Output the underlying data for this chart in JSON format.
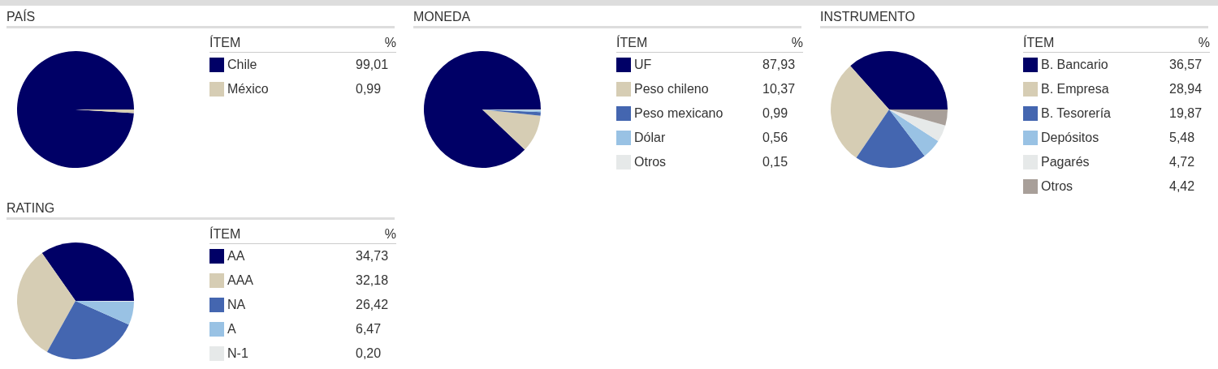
{
  "chart_data": [
    {
      "type": "pie",
      "title": "PAÍS",
      "legend_title": "ÍTEM",
      "annotations": [
        "%"
      ],
      "legend": "right",
      "categories": [
        "Chile",
        "México"
      ],
      "values": [
        99.01,
        0.99
      ],
      "value_labels": [
        "99,01",
        "0,99"
      ],
      "colors": [
        "#000066",
        "#d6cdb4"
      ]
    },
    {
      "type": "pie",
      "title": "MONEDA",
      "legend_title": "ÍTEM",
      "annotations": [
        "%"
      ],
      "legend": "right",
      "categories": [
        "UF",
        "Peso chileno",
        "Peso mexicano",
        "Dólar",
        "Otros"
      ],
      "values": [
        87.93,
        10.37,
        0.99,
        0.56,
        0.15
      ],
      "value_labels": [
        "87,93",
        "10,37",
        "0,99",
        "0,56",
        "0,15"
      ],
      "colors": [
        "#000066",
        "#d6cdb4",
        "#4466b0",
        "#99c2e4",
        "#e6e9e9"
      ]
    },
    {
      "type": "pie",
      "title": "INSTRUMENTO",
      "legend_title": "ÍTEM",
      "annotations": [
        "%"
      ],
      "legend": "right",
      "categories": [
        "B. Bancario",
        "B. Empresa",
        "B. Tesorería",
        "Depósitos",
        "Pagarés",
        "Otros"
      ],
      "values": [
        36.57,
        28.94,
        19.87,
        5.48,
        4.72,
        4.42
      ],
      "value_labels": [
        "36,57",
        "28,94",
        "19,87",
        "5,48",
        "4,72",
        "4,42"
      ],
      "colors": [
        "#000066",
        "#d6cdb4",
        "#4466b0",
        "#99c2e4",
        "#e6e9e9",
        "#a89f99"
      ]
    },
    {
      "type": "pie",
      "title": "RATING",
      "legend_title": "ÍTEM",
      "annotations": [
        "%"
      ],
      "legend": "right",
      "categories": [
        "AA",
        "AAA",
        "NA",
        "A",
        "N-1"
      ],
      "values": [
        34.73,
        32.18,
        26.42,
        6.47,
        0.2
      ],
      "value_labels": [
        "34,73",
        "32,18",
        "26,42",
        "6,47",
        "0,20"
      ],
      "colors": [
        "#000066",
        "#d6cdb4",
        "#4466b0",
        "#99c2e4",
        "#e6e9e9"
      ]
    }
  ]
}
